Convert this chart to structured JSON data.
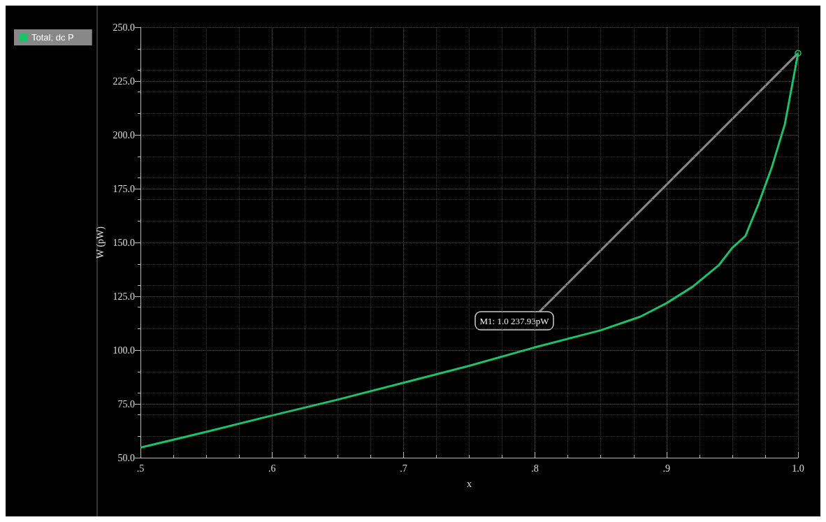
{
  "chart_data": {
    "type": "line",
    "ylabel": "W (pW)",
    "xlabel": "x",
    "x": [
      0.5,
      0.55,
      0.6,
      0.65,
      0.7,
      0.75,
      0.8,
      0.85,
      0.88,
      0.9,
      0.92,
      0.94,
      0.95,
      0.96,
      0.97,
      0.98,
      0.99,
      1.0
    ],
    "series": [
      {
        "name": "Total; dc P",
        "color": "#1fc06a",
        "values": [
          54.7,
          62,
          69.6,
          77,
          84.8,
          92.7,
          101.3,
          109.2,
          115.5,
          121.8,
          129.5,
          139.6,
          147.5,
          153,
          168,
          184.8,
          205,
          237.93
        ]
      }
    ],
    "xlim": [
      0.5,
      1.0
    ],
    "xticks": [
      {
        "value": 0.5,
        "label": ".5"
      },
      {
        "value": 0.6,
        "label": ".6"
      },
      {
        "value": 0.7,
        "label": ".7"
      },
      {
        "value": 0.8,
        "label": ".8"
      },
      {
        "value": 0.9,
        "label": ".9"
      },
      {
        "value": 1.0,
        "label": "1.0"
      }
    ],
    "ylim": [
      50,
      250
    ],
    "yticks": [
      {
        "value": 50,
        "label": "50.0"
      },
      {
        "value": 75,
        "label": "75.0"
      },
      {
        "value": 100,
        "label": "100.0"
      },
      {
        "value": 125,
        "label": "125.0"
      },
      {
        "value": 150,
        "label": "150.0"
      },
      {
        "value": 175,
        "label": "175.0"
      },
      {
        "value": 200,
        "label": "200.0"
      },
      {
        "value": 225,
        "label": "225.0"
      },
      {
        "value": 250,
        "label": "250.0"
      }
    ],
    "annotations": [
      {
        "text": "M1: 1.0 237.93pW",
        "x": 1.0,
        "y": 237.93
      }
    ],
    "grid": true,
    "legend": "left",
    "marker": "none",
    "line_style": "solid"
  }
}
